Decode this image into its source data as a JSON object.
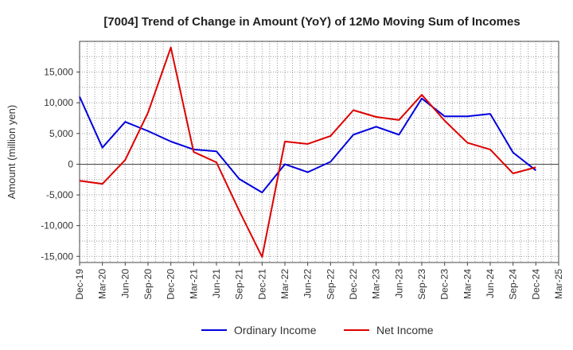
{
  "chart_data": {
    "type": "line",
    "title": "[7004]  Trend of Change in Amount (YoY) of 12Mo Moving Sum of Incomes",
    "xlabel": "",
    "ylabel": "Amount (million yen)",
    "ylim": [
      -16000,
      20000
    ],
    "yticks": [
      -15000,
      -10000,
      -5000,
      0,
      5000,
      10000,
      15000
    ],
    "ytick_labels": [
      "-15,000",
      "-10,000",
      "-5,000",
      "0",
      "5,000",
      "10,000",
      "15,000"
    ],
    "categories": [
      "Dec-19",
      "Mar-20",
      "Jun-20",
      "Sep-20",
      "Dec-20",
      "Mar-21",
      "Jun-21",
      "Sep-21",
      "Dec-21",
      "Mar-22",
      "Jun-22",
      "Sep-22",
      "Dec-22",
      "Mar-23",
      "Jun-23",
      "Sep-23",
      "Dec-23",
      "Mar-24",
      "Jun-24",
      "Sep-24",
      "Dec-24",
      "Mar-25"
    ],
    "series": [
      {
        "name": "Ordinary Income",
        "color": "#0000dd",
        "values": [
          11000,
          2700,
          6900,
          5400,
          3700,
          2400,
          2100,
          -2400,
          -4600,
          0,
          -1300,
          400,
          4800,
          6100,
          4800,
          10700,
          7800,
          7800,
          8200,
          1900,
          -1000,
          null
        ]
      },
      {
        "name": "Net Income",
        "color": "#dd0000",
        "values": [
          -2700,
          -3200,
          700,
          8400,
          19000,
          2000,
          300,
          -7600,
          -15100,
          3700,
          3300,
          4600,
          8800,
          7700,
          7200,
          11300,
          7100,
          3500,
          2400,
          -1500,
          -500,
          null
        ]
      }
    ],
    "grid": true,
    "legend": "bottom-center"
  }
}
